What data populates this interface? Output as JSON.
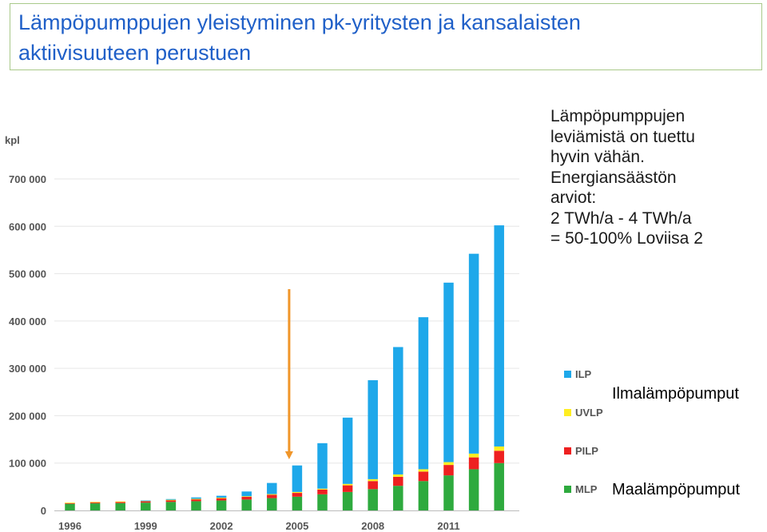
{
  "title": {
    "line1": "Lämpöpumppujen yleistyminen pk-yritysten ja kansalaisten",
    "line2": "aktiivisuuteen perustuen"
  },
  "note": {
    "lines": [
      "Lämpöpumppujen",
      "leviämistä on tuettu",
      "hyvin vähän.",
      "Energiansäästön",
      "arviot:",
      "2 TWh/a - 4 TWh/a",
      "= 50-100% Loviisa 2"
    ]
  },
  "callouts": {
    "ilp": "Ilmalämpöpumput",
    "mlp": "Maalämpöpumput"
  },
  "chart_data": {
    "type": "bar",
    "stacked": true,
    "ylabel": "kpl",
    "ylim": [
      0,
      700000
    ],
    "yticks": [
      0,
      100000,
      200000,
      300000,
      400000,
      500000,
      600000,
      700000
    ],
    "ytick_labels": [
      "0",
      "100 000",
      "200 000",
      "300 000",
      "400 000",
      "500 000",
      "600 000",
      "700 000"
    ],
    "categories": [
      "1996",
      "1997",
      "1998",
      "1999",
      "2000",
      "2001",
      "2002",
      "2003",
      "2004",
      "2005",
      "2006",
      "2007",
      "2008",
      "2009",
      "2010",
      "2011",
      "2012",
      "2013"
    ],
    "xtick_labels": [
      "1996",
      "1999",
      "2002",
      "2005",
      "2008",
      "2011"
    ],
    "legend_placement": "right",
    "arrow_at": "2005",
    "series": [
      {
        "name": "MLP",
        "color": "#2eaa3e",
        "values": [
          14000,
          15000,
          15500,
          16500,
          18000,
          19500,
          21000,
          23000,
          26000,
          29000,
          34000,
          39000,
          45000,
          52000,
          62000,
          74000,
          87000,
          100000
        ]
      },
      {
        "name": "PILP",
        "color": "#ee2020",
        "values": [
          2000,
          2500,
          3000,
          3500,
          4000,
          4500,
          5000,
          6000,
          7000,
          8000,
          10000,
          14000,
          17000,
          19000,
          20000,
          22000,
          25000,
          26000
        ]
      },
      {
        "name": "UVLP",
        "color": "#ffee22",
        "values": [
          500,
          500,
          500,
          500,
          500,
          500,
          1000,
          1000,
          1500,
          2000,
          2000,
          3000,
          4000,
          5000,
          5000,
          6000,
          8000,
          9000
        ]
      },
      {
        "name": "ILP",
        "color": "#1ea8ea",
        "values": [
          0,
          0,
          0,
          500,
          1500,
          3000,
          4000,
          10000,
          23500,
          56000,
          96000,
          140000,
          209000,
          269000,
          321000,
          379000,
          422000,
          467000
        ]
      }
    ]
  }
}
